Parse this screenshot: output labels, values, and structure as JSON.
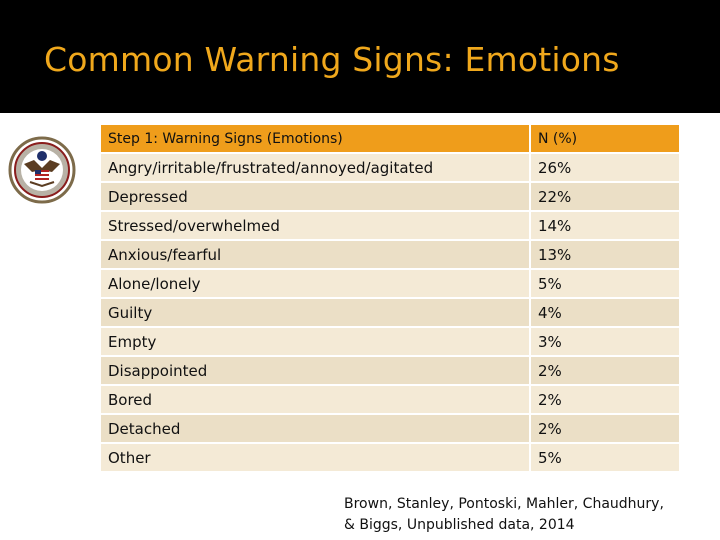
{
  "slide": {
    "title": "Common Warning Signs: Emotions"
  },
  "table": {
    "header": {
      "sign": "Step 1: Warning Signs (Emotions)",
      "pct": "N (%)"
    },
    "rows": [
      {
        "sign": "Angry/irritable/frustrated/annoyed/agitated",
        "pct": "26%"
      },
      {
        "sign": "Depressed",
        "pct": "22%"
      },
      {
        "sign": "Stressed/overwhelmed",
        "pct": "14%"
      },
      {
        "sign": "Anxious/fearful",
        "pct": "13%"
      },
      {
        "sign": "Alone/lonely",
        "pct": "5%"
      },
      {
        "sign": "Guilty",
        "pct": "4%"
      },
      {
        "sign": "Empty",
        "pct": "3%"
      },
      {
        "sign": "Disappointed",
        "pct": "2%"
      },
      {
        "sign": "Bored",
        "pct": "2%"
      },
      {
        "sign": "Detached",
        "pct": "2%"
      },
      {
        "sign": "Other",
        "pct": "5%"
      }
    ]
  },
  "citation": {
    "line1": "Brown, Stanley, Pontoski, Mahler, Chaudhury,",
    "line2": "& Biggs, Unpublished data, 2014"
  },
  "colors": {
    "title_bar": "#000000",
    "title_text": "#f0a81c",
    "header_fill": "#ef9d1b",
    "row_fill": "#f4ead6",
    "row_fill_alt": "#ebdfc6"
  },
  "icons": {
    "seal": "department-seal-icon"
  }
}
